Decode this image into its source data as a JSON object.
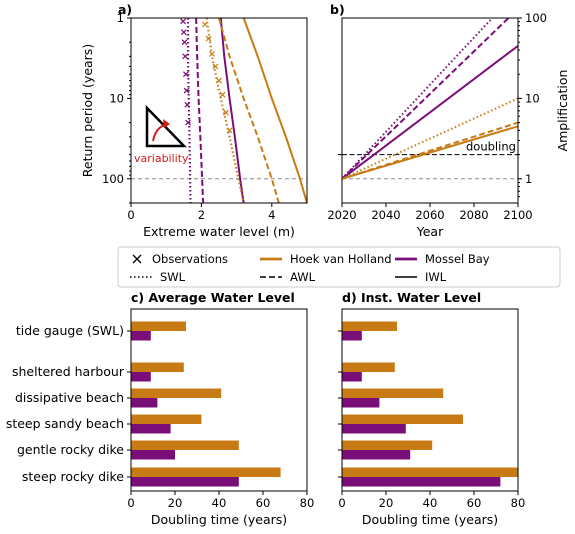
{
  "colors": {
    "hoek": "#c87b14",
    "mossel": "#7a0e78",
    "variability": "#d61a1a",
    "ref": "#888888"
  },
  "legend": {
    "items": [
      {
        "label": "Observations",
        "style": "marker-x"
      },
      {
        "label": "Hoek van Holland",
        "style": "solid-thick",
        "color": "#c87b14"
      },
      {
        "label": "Mossel Bay",
        "style": "solid-thick",
        "color": "#7a0e78"
      },
      {
        "label": "SWL",
        "style": "dotted"
      },
      {
        "label": "AWL",
        "style": "dashed"
      },
      {
        "label": "IWL",
        "style": "solid"
      }
    ]
  },
  "chart_data": [
    {
      "panel": "a)",
      "type": "line",
      "xlabel": "Extreme water level (m)",
      "ylabel": "Return period (years)",
      "xlim": [
        0,
        5
      ],
      "ylim": [
        200,
        1
      ],
      "yscale": "log",
      "xticks": [
        0,
        2,
        4
      ],
      "yticks": [
        1,
        10,
        100
      ],
      "annotation": "variability",
      "reference_line_y": 100,
      "series": [
        {
          "site": "Mossel Bay",
          "type": "SWL",
          "points": [
            [
              1.62,
              1
            ],
            [
              1.62,
              3
            ],
            [
              1.64,
              10
            ],
            [
              1.66,
              30
            ],
            [
              1.68,
              100
            ],
            [
              1.69,
              200
            ]
          ]
        },
        {
          "site": "Mossel Bay",
          "type": "AWL",
          "points": [
            [
              1.85,
              1
            ],
            [
              1.88,
              3
            ],
            [
              1.92,
              10
            ],
            [
              1.97,
              30
            ],
            [
              2.02,
              100
            ],
            [
              2.05,
              200
            ]
          ]
        },
        {
          "site": "Mossel Bay",
          "type": "IWL",
          "points": [
            [
              2.55,
              1
            ],
            [
              2.65,
              3
            ],
            [
              2.8,
              10
            ],
            [
              2.95,
              30
            ],
            [
              3.1,
              100
            ],
            [
              3.2,
              200
            ]
          ]
        },
        {
          "site": "Hoek van Holland",
          "type": "SWL",
          "points": [
            [
              2.15,
              1
            ],
            [
              2.3,
              3
            ],
            [
              2.55,
              10
            ],
            [
              2.8,
              30
            ],
            [
              3.05,
              100
            ],
            [
              3.2,
              200
            ]
          ]
        },
        {
          "site": "Hoek van Holland",
          "type": "AWL",
          "points": [
            [
              2.5,
              1
            ],
            [
              2.8,
              3
            ],
            [
              3.2,
              10
            ],
            [
              3.6,
              30
            ],
            [
              4.0,
              100
            ],
            [
              4.2,
              200
            ]
          ]
        },
        {
          "site": "Hoek van Holland",
          "type": "IWL",
          "points": [
            [
              3.2,
              1
            ],
            [
              3.6,
              3
            ],
            [
              4.0,
              10
            ],
            [
              4.4,
              30
            ],
            [
              4.8,
              100
            ],
            [
              5.0,
              200
            ]
          ]
        }
      ],
      "observations": [
        {
          "site": "Mossel Bay",
          "points": [
            [
              1.48,
              1.1
            ],
            [
              1.5,
              1.5
            ],
            [
              1.52,
              2
            ],
            [
              1.54,
              3
            ],
            [
              1.56,
              5
            ],
            [
              1.58,
              8
            ],
            [
              1.6,
              12
            ],
            [
              1.62,
              20
            ]
          ]
        },
        {
          "site": "Hoek van Holland",
          "points": [
            [
              2.1,
              1.2
            ],
            [
              2.2,
              1.8
            ],
            [
              2.3,
              2.8
            ],
            [
              2.4,
              4
            ],
            [
              2.5,
              6
            ],
            [
              2.6,
              9
            ],
            [
              2.7,
              15
            ],
            [
              2.8,
              25
            ]
          ]
        }
      ]
    },
    {
      "panel": "b)",
      "type": "line",
      "xlabel": "Year",
      "ylabel": "Amplification",
      "xlim": [
        2020,
        2100
      ],
      "ylim": [
        0.5,
        100
      ],
      "yscale": "log",
      "xticks": [
        2020,
        2040,
        2060,
        2080,
        2100
      ],
      "yticks": [
        1,
        10,
        100
      ],
      "annotation": "doubling",
      "reference_line_y": 2,
      "series": [
        {
          "site": "Mossel Bay",
          "type": "SWL",
          "points": [
            [
              2020,
              1
            ],
            [
              2100,
              220
            ]
          ]
        },
        {
          "site": "Mossel Bay",
          "type": "AWL",
          "points": [
            [
              2020,
              1
            ],
            [
              2100,
              130
            ]
          ]
        },
        {
          "site": "Mossel Bay",
          "type": "IWL",
          "points": [
            [
              2020,
              1
            ],
            [
              2100,
              45
            ]
          ]
        },
        {
          "site": "Hoek van Holland",
          "type": "SWL",
          "points": [
            [
              2020,
              1
            ],
            [
              2100,
              10
            ]
          ]
        },
        {
          "site": "Hoek van Holland",
          "type": "AWL",
          "points": [
            [
              2020,
              1
            ],
            [
              2100,
              5
            ]
          ]
        },
        {
          "site": "Hoek van Holland",
          "type": "IWL",
          "points": [
            [
              2020,
              1
            ],
            [
              2100,
              4.5
            ]
          ]
        }
      ]
    },
    {
      "panel": "c)",
      "type": "bar",
      "orientation": "horizontal",
      "title": "Average Water Level",
      "xlabel": "Doubling time (years)",
      "xlim": [
        0,
        80
      ],
      "xticks": [
        0,
        20,
        40,
        60,
        80
      ],
      "categories": [
        "tide gauge (SWL)",
        "sheltered harbour",
        "dissipative beach",
        "steep sandy beach",
        "gentle rocky dike",
        "steep rocky dike"
      ],
      "series": [
        {
          "name": "Hoek van Holland",
          "values": [
            25,
            24,
            41,
            32,
            49,
            68
          ]
        },
        {
          "name": "Mossel Bay",
          "values": [
            9,
            9,
            12,
            18,
            20,
            49
          ]
        }
      ]
    },
    {
      "panel": "d)",
      "type": "bar",
      "orientation": "horizontal",
      "title": "Inst. Water Level",
      "xlabel": "Doubling time (years)",
      "xlim": [
        0,
        80
      ],
      "xticks": [
        0,
        20,
        40,
        60,
        80
      ],
      "categories": [
        "tide gauge (SWL)",
        "sheltered harbour",
        "dissipative beach",
        "steep sandy beach",
        "gentle rocky dike",
        "steep rocky dike"
      ],
      "series": [
        {
          "name": "Hoek van Holland",
          "values": [
            25,
            24,
            46,
            55,
            41,
            80
          ]
        },
        {
          "name": "Mossel Bay",
          "values": [
            9,
            9,
            17,
            29,
            31,
            72
          ]
        }
      ]
    }
  ]
}
